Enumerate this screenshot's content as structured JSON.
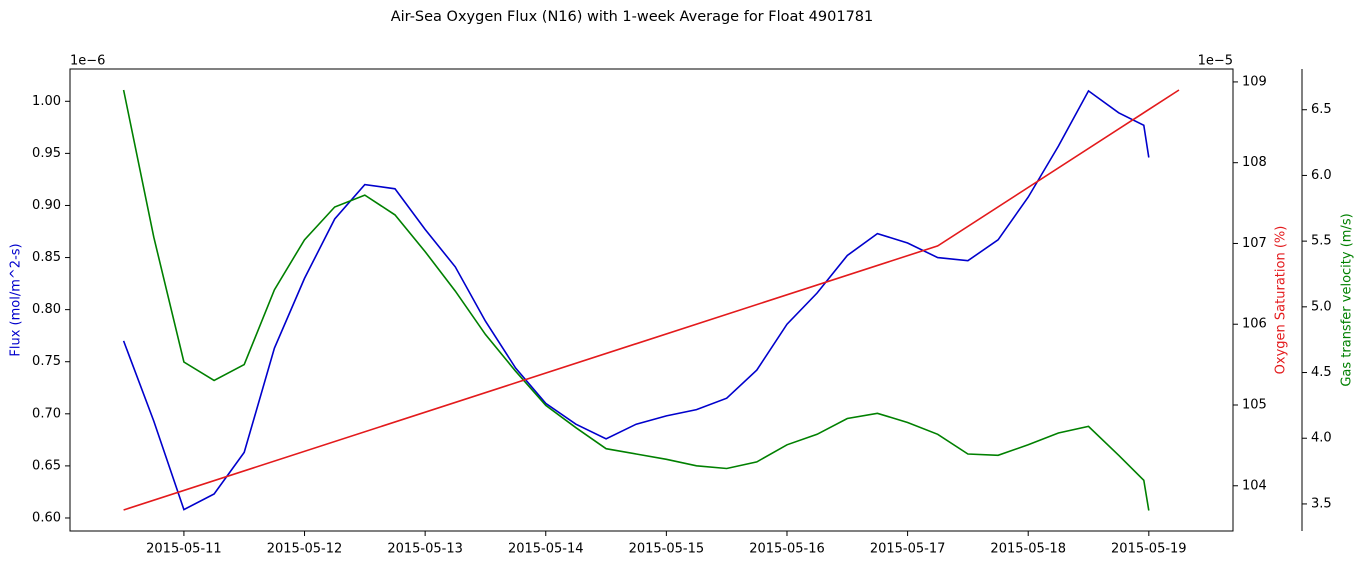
{
  "chart_data": {
    "type": "line",
    "title": "Air-Sea Oxygen Flux (N16) with 1-week Average for Float 4901781",
    "y_label": "Flux (mol/m^2-s)",
    "y2_label": "Oxygen Saturation (%)",
    "y3_label": "Gas transfer velocity (m/s)",
    "y_offset": "1e−6",
    "y2_offset": "1e−5",
    "x": [
      "2015-05-10T12:00",
      "2015-05-10T18:00",
      "2015-05-11T00:00",
      "2015-05-11T06:00",
      "2015-05-11T12:00",
      "2015-05-11T18:00",
      "2015-05-12T00:00",
      "2015-05-12T06:00",
      "2015-05-12T12:00",
      "2015-05-12T18:00",
      "2015-05-13T00:00",
      "2015-05-13T06:00",
      "2015-05-13T12:00",
      "2015-05-13T18:00",
      "2015-05-14T00:00",
      "2015-05-14T06:00",
      "2015-05-14T12:00",
      "2015-05-14T18:00",
      "2015-05-15T00:00",
      "2015-05-15T06:00",
      "2015-05-15T12:00",
      "2015-05-15T18:00",
      "2015-05-16T00:00",
      "2015-05-16T06:00",
      "2015-05-16T12:00",
      "2015-05-16T18:00",
      "2015-05-17T00:00",
      "2015-05-17T06:00",
      "2015-05-17T12:00",
      "2015-05-17T18:00",
      "2015-05-18T00:00",
      "2015-05-18T06:00",
      "2015-05-18T12:00",
      "2015-05-18T18:00",
      "2015-05-18T23:00",
      "2015-05-19T00:00"
    ],
    "series": [
      {
        "name": "Flux",
        "color": "#0000cc",
        "axis": "y",
        "values": [
          0.77,
          0.693,
          0.608,
          0.623,
          0.663,
          0.763,
          0.83,
          0.887,
          0.92,
          0.916,
          0.877,
          0.841,
          0.789,
          0.744,
          0.71,
          0.69,
          0.676,
          0.69,
          0.698,
          0.704,
          0.715,
          0.742,
          0.786,
          0.816,
          0.852,
          0.873,
          0.864,
          0.85,
          0.847,
          0.867,
          0.908,
          0.957,
          1.01,
          0.989,
          0.977,
          0.946
        ]
      },
      {
        "name": "Gas transfer velocity",
        "color": "#008000",
        "axis": "y3",
        "values": [
          6.65,
          5.53,
          4.58,
          4.44,
          4.56,
          5.13,
          5.51,
          5.76,
          5.85,
          5.7,
          5.42,
          5.12,
          4.79,
          4.51,
          4.25,
          4.08,
          3.92,
          3.88,
          3.84,
          3.79,
          3.77,
          3.82,
          3.95,
          4.03,
          4.15,
          4.19,
          4.12,
          4.03,
          3.88,
          3.87,
          3.95,
          4.04,
          4.09,
          3.87,
          3.68,
          3.45
        ]
      },
      {
        "name": "Oxygen Saturation",
        "color": "#e31a1c",
        "axis": "y2",
        "x": [
          "2015-05-10T12:00",
          "2015-05-17T06:00",
          "2015-05-19T06:00"
        ],
        "values": [
          103.7,
          106.97,
          108.9
        ]
      }
    ],
    "xlim": [
      "2015-05-10T01:20",
      "2015-05-19T16:45"
    ],
    "xticks": [
      "2015-05-11",
      "2015-05-12",
      "2015-05-13",
      "2015-05-14",
      "2015-05-15",
      "2015-05-16",
      "2015-05-17",
      "2015-05-18",
      "2015-05-19"
    ],
    "ylim": [
      0.5875,
      1.031
    ],
    "yticks": [
      {
        "value": 0.6,
        "label": "0.60"
      },
      0.65,
      {
        "value": 0.7,
        "label": "0.70"
      },
      0.75,
      {
        "value": 0.8,
        "label": "0.80"
      },
      0.85,
      {
        "value": 0.9,
        "label": "0.90"
      },
      0.95,
      {
        "value": 1.0,
        "label": "1.00"
      }
    ],
    "y2lim": [
      103.44,
      109.16
    ],
    "y2ticks": [
      104,
      105,
      106,
      107,
      108,
      109
    ],
    "y3lim": [
      3.294,
      6.81
    ],
    "y3ticks": [
      3.5,
      {
        "value": 4.0,
        "label": "4.0"
      },
      4.5,
      {
        "value": 5.0,
        "label": "5.0"
      },
      5.5,
      {
        "value": 6.0,
        "label": "6.0"
      },
      6.5
    ]
  }
}
